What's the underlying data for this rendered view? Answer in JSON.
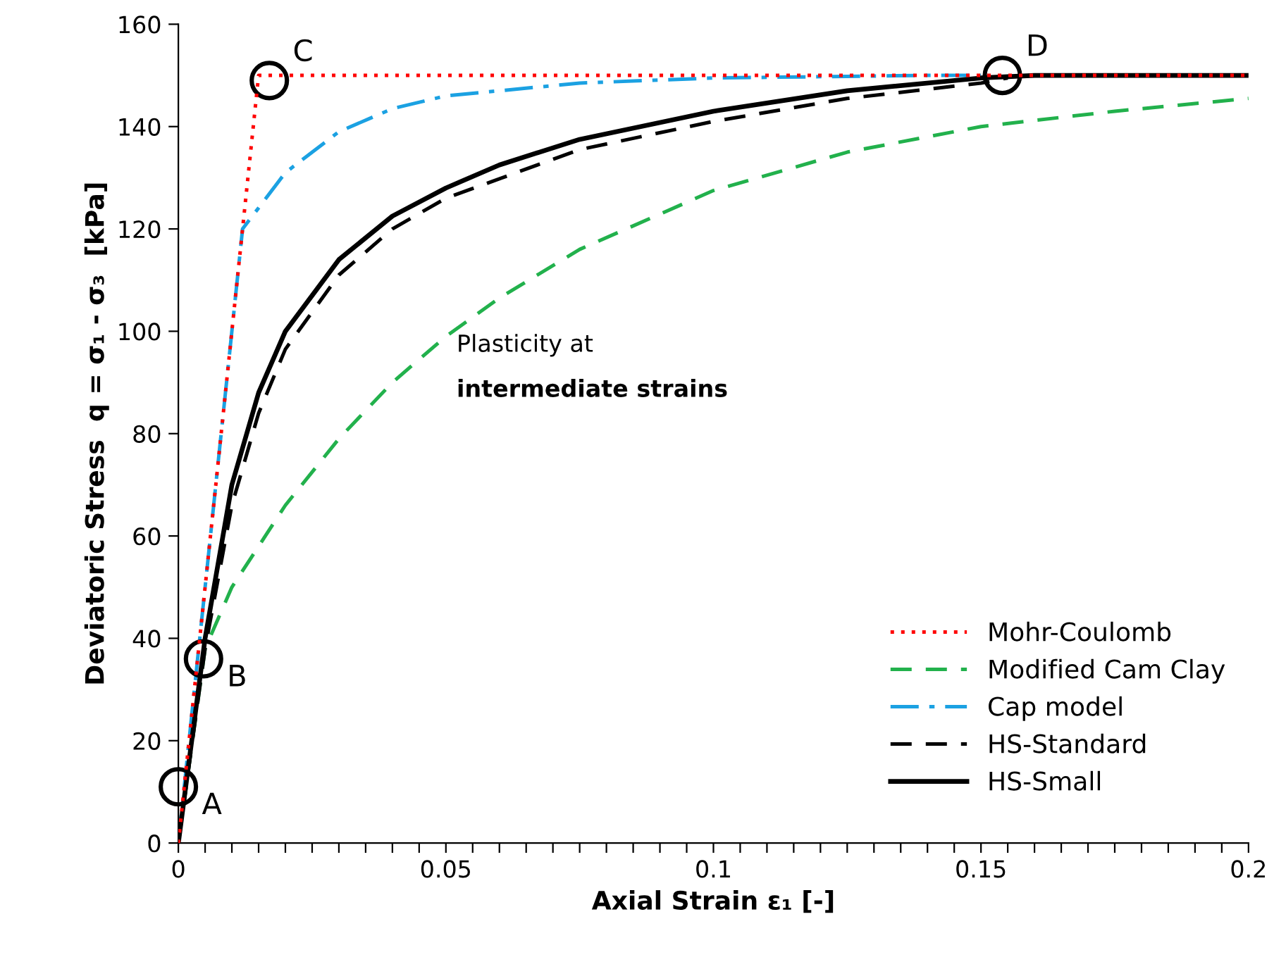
{
  "chart_data": {
    "type": "line",
    "xlabel": "Axial Strain ε₁ [-]",
    "ylabel": "Deviatoric Stress  q = σ₁ - σ₃  [kPa]",
    "xlim": [
      0,
      0.2
    ],
    "ylim": [
      0,
      160
    ],
    "xticks": [
      0,
      {
        "value": 0.005,
        "label": null
      },
      {
        "value": 0.01,
        "label": null
      },
      {
        "value": 0.015,
        "label": null
      },
      {
        "value": 0.02,
        "label": null
      },
      {
        "value": 0.025,
        "label": null
      },
      {
        "value": 0.03,
        "label": null
      },
      {
        "value": 0.035,
        "label": null
      },
      {
        "value": 0.04,
        "label": null
      },
      {
        "value": 0.045,
        "label": null
      },
      0.05,
      {
        "value": 0.055,
        "label": null
      },
      {
        "value": 0.06,
        "label": null
      },
      {
        "value": 0.065,
        "label": null
      },
      {
        "value": 0.07,
        "label": null
      },
      {
        "value": 0.075,
        "label": null
      },
      {
        "value": 0.08,
        "label": null
      },
      {
        "value": 0.085,
        "label": null
      },
      {
        "value": 0.09,
        "label": null
      },
      {
        "value": 0.095,
        "label": null
      },
      0.1,
      {
        "value": 0.105,
        "label": null
      },
      {
        "value": 0.11,
        "label": null
      },
      {
        "value": 0.115,
        "label": null
      },
      {
        "value": 0.12,
        "label": null
      },
      {
        "value": 0.125,
        "label": null
      },
      {
        "value": 0.13,
        "label": null
      },
      {
        "value": 0.135,
        "label": null
      },
      {
        "value": 0.14,
        "label": null
      },
      {
        "value": 0.145,
        "label": null
      },
      0.15,
      {
        "value": 0.155,
        "label": null
      },
      {
        "value": 0.16,
        "label": null
      },
      {
        "value": 0.165,
        "label": null
      },
      {
        "value": 0.17,
        "label": null
      },
      {
        "value": 0.175,
        "label": null
      },
      {
        "value": 0.18,
        "label": null
      },
      {
        "value": 0.185,
        "label": null
      },
      {
        "value": 0.19,
        "label": null
      },
      {
        "value": 0.195,
        "label": null
      },
      0.2
    ],
    "yticks": [
      0,
      20,
      40,
      60,
      80,
      100,
      120,
      140,
      160
    ],
    "grid": false,
    "legend": "bottom right",
    "marker": "none",
    "series": [
      {
        "name": "Mohr-Coulomb",
        "color": "#ff0000",
        "line_style": "dotted",
        "x": [
          0,
          0.015,
          0.2
        ],
        "values": [
          0,
          150,
          150
        ]
      },
      {
        "name": "Modified Cam Clay",
        "color": "#22b14c",
        "line_style": "dashed",
        "x": [
          0,
          0.005,
          0.01,
          0.02,
          0.03,
          0.04,
          0.05,
          0.06,
          0.075,
          0.1,
          0.125,
          0.15,
          0.175,
          0.2
        ],
        "values": [
          0,
          38,
          50,
          66,
          79,
          90,
          99,
          106.5,
          116,
          127.5,
          135,
          140,
          143,
          145.5
        ]
      },
      {
        "name": "Cap model",
        "color": "#1ba1e2",
        "line_style": "dashdot",
        "x": [
          0,
          0.012,
          0.02,
          0.03,
          0.04,
          0.05,
          0.075,
          0.1,
          0.14,
          0.15
        ],
        "values": [
          0,
          120,
          131,
          139,
          143.5,
          146,
          148.5,
          149.5,
          150,
          150
        ]
      },
      {
        "name": "HS-Standard",
        "color": "#000000",
        "line_style": "dashed",
        "x": [
          0,
          0.005,
          0.01,
          0.015,
          0.02,
          0.03,
          0.04,
          0.05,
          0.075,
          0.1,
          0.125,
          0.15,
          0.155
        ],
        "values": [
          0,
          38,
          66,
          84,
          96.5,
          111,
          120,
          126,
          135.5,
          141,
          145.5,
          148.5,
          149.5
        ]
      },
      {
        "name": "HS-Small",
        "color": "#000000",
        "line_style": "solid",
        "x": [
          0,
          0.005,
          0.01,
          0.015,
          0.02,
          0.03,
          0.04,
          0.05,
          0.06,
          0.075,
          0.1,
          0.125,
          0.15,
          0.16,
          0.2
        ],
        "values": [
          0,
          40,
          70,
          88,
          100,
          114,
          122.5,
          128,
          132.5,
          137.5,
          143,
          147,
          149.5,
          150,
          150
        ]
      }
    ],
    "annotations": [
      {
        "text": "A",
        "x": 0,
        "y": 11
      },
      {
        "text": "B",
        "x": 0.0047,
        "y": 36
      },
      {
        "text": "C",
        "x": 0.017,
        "y": 149
      },
      {
        "text": "D",
        "x": 0.154,
        "y": 150
      },
      "Plasticity at",
      "intermediate strains"
    ]
  }
}
